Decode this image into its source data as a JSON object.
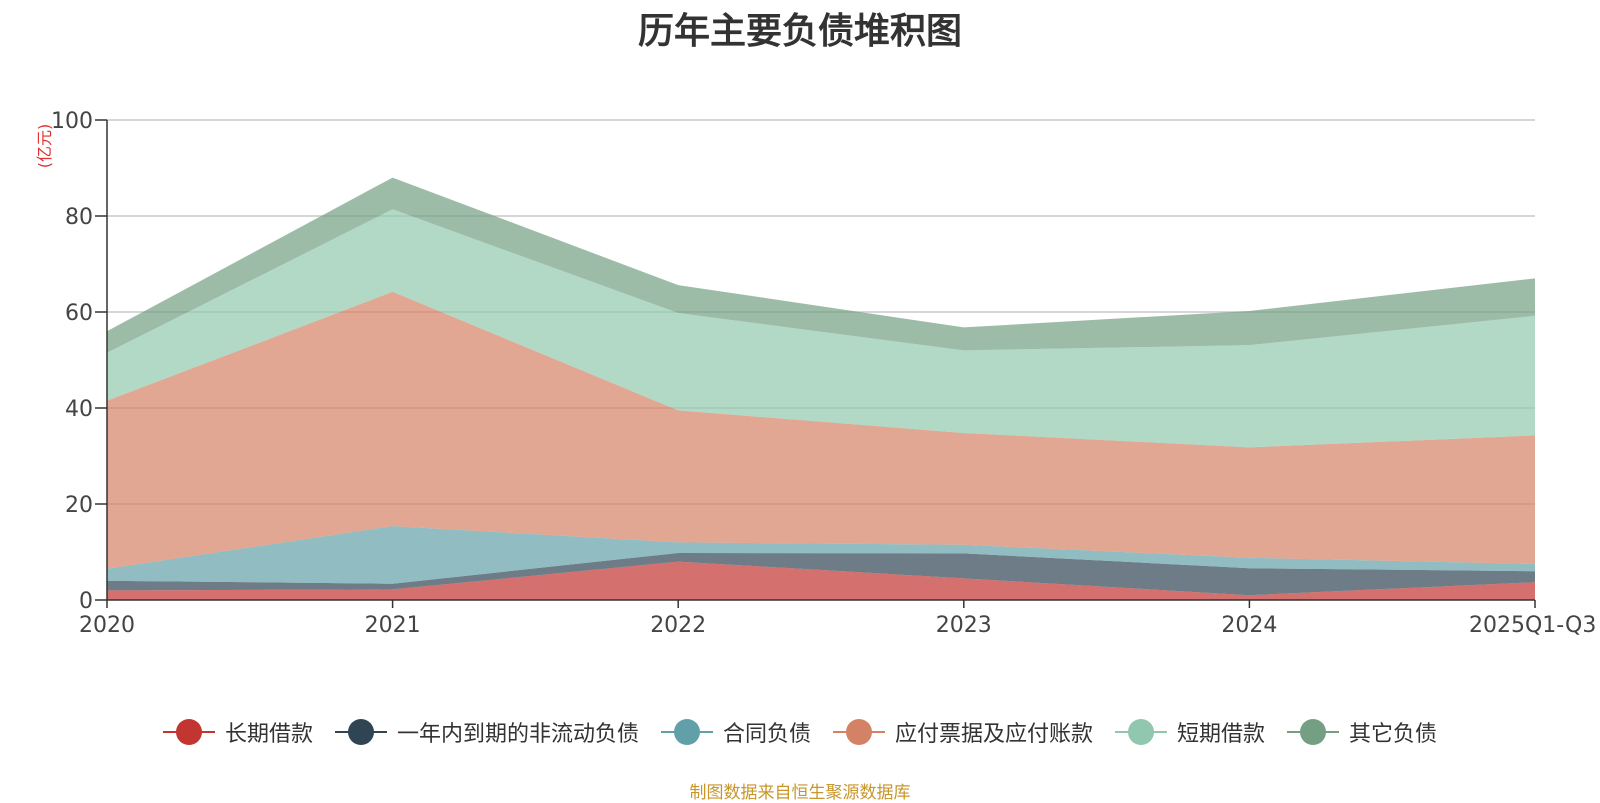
{
  "chart_data": {
    "type": "area",
    "stacked": true,
    "title": "历年主要负债堆积图",
    "ylabel": "(亿元)",
    "xlabel": "",
    "ylim": [
      0,
      100
    ],
    "yticks": [
      "0",
      "20",
      "40",
      "60",
      "80",
      "100"
    ],
    "categories": [
      "2020",
      "2021",
      "2022",
      "2023",
      "2024",
      "2025Q1-Q3"
    ],
    "series": [
      {
        "name": "长期借款",
        "values": [
          2.0,
          2.2,
          8.0,
          4.5,
          1.0,
          3.7
        ],
        "color": "#c23531"
      },
      {
        "name": "一年内到期的非流动负债",
        "values": [
          2.0,
          1.2,
          1.8,
          5.2,
          5.6,
          2.3
        ],
        "color": "#2f4554"
      },
      {
        "name": "合同负债",
        "values": [
          2.5,
          12.0,
          2.2,
          1.8,
          2.2,
          1.5
        ],
        "color": "#61a0a8"
      },
      {
        "name": "应付票据及应付账款",
        "values": [
          35.0,
          48.8,
          27.5,
          23.3,
          23.0,
          26.8
        ],
        "color": "#d48265"
      },
      {
        "name": "短期借款",
        "values": [
          10.0,
          17.2,
          20.3,
          17.2,
          21.3,
          24.9
        ],
        "color": "#91c7ae"
      },
      {
        "name": "其它负债",
        "values": [
          4.5,
          6.6,
          5.8,
          4.8,
          7.1,
          7.8
        ],
        "color": "#749f83"
      }
    ]
  },
  "source_text": "制图数据来自恒生聚源数据库"
}
